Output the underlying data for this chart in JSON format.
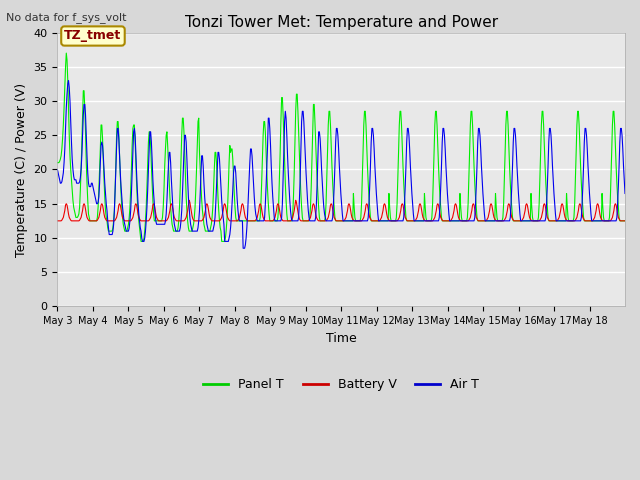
{
  "title": "Tonzi Tower Met: Temperature and Power",
  "xlabel": "Time",
  "ylabel": "Temperature (C) / Power (V)",
  "top_left_text": "No data for f_sys_volt",
  "annotation_label": "TZ_tmet",
  "ylim": [
    0,
    40
  ],
  "yticks": [
    0,
    5,
    10,
    15,
    20,
    25,
    30,
    35,
    40
  ],
  "x_labels": [
    "May 3",
    "May 4",
    "May 5",
    "May 6",
    "May 7",
    "May 8",
    "May 9",
    "May 10",
    "May 11",
    "May 12",
    "May 13",
    "May 14",
    "May 15",
    "May 16",
    "May 17",
    "May 18"
  ],
  "fig_bg_color": "#d8d8d8",
  "plot_bg_color": "#e8e8e8",
  "panel_t_color": "#00ee00",
  "battery_v_color": "#ee0000",
  "air_t_color": "#0000ee",
  "legend_colors": [
    "#00cc00",
    "#cc0000",
    "#0000cc"
  ],
  "legend_labels": [
    "Panel T",
    "Battery V",
    "Air T"
  ],
  "n_days": 16,
  "hours_per_day": 48,
  "panel_t_data": [
    21.0,
    21.0,
    21.0,
    21.2,
    21.5,
    22.0,
    23.0,
    24.5,
    26.5,
    29.0,
    32.0,
    35.0,
    37.0,
    36.0,
    33.0,
    29.0,
    25.0,
    22.0,
    20.0,
    18.5,
    17.0,
    15.5,
    14.5,
    14.0,
    13.5,
    13.0,
    13.0,
    13.0,
    13.2,
    13.5,
    14.5,
    17.0,
    20.0,
    24.0,
    28.0,
    31.5,
    31.5,
    29.0,
    25.5,
    21.0,
    18.0,
    15.5,
    13.5,
    13.0,
    12.5,
    12.5,
    12.5,
    12.5,
    12.5,
    12.5,
    12.5,
    12.5,
    12.5,
    12.5,
    13.0,
    14.5,
    17.0,
    20.0,
    23.0,
    26.5,
    26.5,
    24.5,
    21.5,
    18.5,
    16.0,
    14.0,
    13.0,
    12.5,
    11.5,
    11.0,
    11.0,
    11.0,
    11.0,
    11.0,
    11.0,
    11.5,
    12.5,
    14.0,
    17.0,
    21.0,
    25.0,
    27.0,
    27.0,
    25.0,
    22.0,
    19.0,
    16.5,
    14.5,
    13.0,
    12.0,
    11.5,
    11.0,
    11.0,
    11.0,
    11.0,
    11.5,
    12.0,
    13.0,
    14.5,
    17.0,
    20.0,
    23.5,
    26.0,
    26.5,
    26.5,
    24.0,
    21.0,
    18.0,
    15.5,
    14.0,
    12.5,
    11.5,
    10.5,
    9.5,
    9.5,
    9.5,
    9.5,
    10.0,
    11.0,
    12.5,
    14.5,
    17.5,
    21.0,
    24.0,
    25.5,
    25.5,
    23.5,
    20.5,
    18.0,
    15.5,
    13.5,
    12.5,
    12.5,
    12.5,
    12.5,
    12.5,
    12.5,
    12.5,
    12.5,
    12.5,
    12.5,
    12.5,
    13.0,
    14.5,
    17.0,
    20.5,
    23.0,
    25.0,
    25.5,
    23.5,
    21.0,
    18.5,
    16.0,
    14.5,
    13.0,
    12.0,
    11.5,
    11.0,
    11.0,
    11.0,
    11.0,
    11.0,
    11.0,
    11.5,
    12.5,
    14.5,
    17.5,
    21.5,
    25.0,
    27.5,
    27.5,
    25.5,
    22.5,
    19.0,
    16.0,
    14.0,
    12.5,
    11.5,
    11.0,
    11.0,
    11.0,
    11.0,
    11.0,
    11.5,
    12.0,
    13.0,
    14.5,
    17.0,
    20.0,
    23.5,
    27.0,
    27.5,
    22.5,
    20.0,
    17.5,
    15.5,
    14.0,
    13.0,
    12.0,
    11.5,
    11.0,
    11.0,
    11.0,
    11.0,
    11.0,
    11.0,
    11.0,
    11.5,
    12.0,
    13.0,
    14.5,
    17.0,
    20.0,
    22.5,
    22.5,
    21.0,
    18.5,
    16.0,
    14.0,
    12.5,
    11.5,
    11.0,
    9.5,
    9.5,
    9.5,
    9.5,
    9.5,
    10.0,
    11.0,
    12.5,
    14.5,
    17.5,
    21.0,
    23.5,
    22.5,
    23.0,
    23.0,
    21.5,
    19.0,
    16.5,
    14.5,
    13.0,
    12.5,
    12.5,
    12.5,
    12.5,
    12.5,
    12.5,
    12.5,
    12.5,
    12.5,
    12.5,
    12.5,
    12.5,
    12.5,
    12.5,
    12.5,
    12.5,
    12.5,
    12.5,
    12.5,
    12.5,
    12.5,
    12.5,
    12.5,
    12.5,
    12.5,
    12.5,
    12.5,
    12.5,
    12.5,
    12.5,
    12.5,
    12.5,
    13.0,
    15.0,
    18.0,
    21.5,
    25.0,
    27.0,
    27.0,
    25.5,
    22.5,
    19.5,
    17.0,
    15.0,
    13.5,
    12.5,
    12.5,
    12.5,
    12.5,
    12.5,
    12.5,
    12.5,
    12.5,
    12.5,
    12.5,
    12.5,
    13.0,
    15.0,
    18.5,
    22.5,
    27.0,
    30.5,
    30.5,
    28.0,
    24.5,
    21.0,
    18.0,
    15.5,
    13.5,
    12.5,
    12.5,
    12.5,
    12.5,
    12.5,
    12.5,
    12.5,
    13.5,
    16.0,
    19.5,
    24.0,
    28.5,
    31.0,
    31.0,
    28.5,
    25.5,
    22.0,
    19.0,
    16.5,
    14.5,
    13.0,
    12.5,
    12.5,
    12.5,
    12.5,
    12.5,
    12.5,
    12.5,
    12.5,
    12.5,
    13.0,
    14.5,
    17.5,
    21.5,
    26.0,
    29.5,
    29.5,
    27.0,
    24.0,
    21.0,
    18.5,
    16.5,
    14.5,
    13.0,
    12.5,
    12.5,
    12.5,
    12.5,
    12.5,
    12.5,
    12.5,
    13.0,
    15.0,
    18.5,
    22.5,
    26.5,
    28.5,
    28.5,
    26.5,
    23.5,
    20.5,
    18.0,
    16.0,
    14.5,
    13.0,
    12.5,
    12.5,
    12.5,
    12.5,
    12.5,
    12.5,
    12.5,
    12.5,
    12.5,
    12.5,
    12.5,
    12.5,
    12.5,
    12.5,
    12.5,
    12.5,
    12.5,
    12.5,
    12.5,
    12.5,
    12.5,
    12.5,
    12.5,
    12.5
  ],
  "battery_v_data": [
    12.5,
    12.5,
    12.5,
    12.5,
    12.5,
    12.5,
    12.6,
    12.8,
    13.0,
    13.5,
    14.0,
    14.8,
    15.0,
    14.8,
    14.2,
    13.5,
    13.0,
    12.8,
    12.6,
    12.5,
    12.5,
    12.5,
    12.5,
    12.5,
    12.5,
    12.5,
    12.5,
    12.5,
    12.5,
    12.5,
    12.6,
    12.8,
    13.0,
    13.5,
    14.0,
    14.8,
    15.0,
    14.8,
    14.2,
    13.5,
    13.0,
    12.8,
    12.6,
    12.5,
    12.5,
    12.5,
    12.5,
    12.5,
    12.5,
    12.5,
    12.5,
    12.5,
    12.5,
    12.5,
    12.6,
    12.8,
    13.0,
    13.5,
    14.0,
    14.8,
    15.0,
    14.8,
    14.2,
    13.5,
    13.0,
    12.8,
    12.6,
    12.5,
    12.5,
    12.5,
    12.5,
    12.5,
    12.5,
    12.5,
    12.5,
    12.5,
    12.5,
    12.5,
    12.6,
    12.8,
    13.0,
    13.5,
    14.0,
    14.8,
    15.0,
    14.8,
    14.2,
    13.5,
    13.0,
    12.8,
    12.6,
    12.5,
    12.5,
    12.5,
    12.5,
    12.5,
    12.5,
    12.5,
    12.5,
    12.5,
    12.6,
    12.8,
    13.0,
    13.5,
    14.0,
    14.8,
    15.0,
    14.8,
    14.2,
    13.5,
    13.0,
    12.8,
    12.6,
    12.5,
    12.5,
    12.5,
    12.5,
    12.5,
    12.5,
    12.5,
    12.5,
    12.5,
    12.5,
    12.5,
    12.6,
    12.8,
    13.0,
    13.5,
    14.0,
    14.8,
    15.0,
    14.8,
    14.2,
    13.5,
    13.0,
    12.8,
    12.6,
    12.5,
    12.5,
    12.5,
    12.5,
    12.5,
    12.5,
    12.5,
    12.5,
    12.5,
    12.5,
    12.5,
    12.6,
    12.8,
    13.0,
    13.5,
    14.0,
    14.8,
    15.0,
    14.8,
    14.2,
    13.5,
    13.0,
    12.8,
    12.6,
    12.5,
    12.5,
    12.5,
    12.5,
    12.5,
    12.5,
    12.5,
    12.5,
    12.5,
    12.5,
    12.5,
    12.6,
    12.8,
    13.0,
    13.5,
    14.0,
    14.8,
    15.5,
    15.2,
    14.5,
    13.8,
    13.2,
    12.8,
    12.6,
    12.5,
    12.5,
    12.5,
    12.5,
    12.5,
    12.5,
    12.5,
    12.5,
    12.5,
    12.5,
    12.5,
    12.6,
    12.8,
    13.0,
    13.5,
    14.0,
    14.8,
    15.0,
    14.8,
    14.2,
    13.5,
    13.0,
    12.8,
    12.6,
    12.5,
    12.5,
    12.5,
    12.5,
    12.5,
    12.5,
    12.5,
    12.5,
    12.5,
    12.5,
    12.5,
    12.6,
    12.8,
    13.0,
    13.5,
    14.0,
    14.8,
    15.0,
    14.8,
    14.2,
    13.5,
    13.0,
    12.8,
    12.6,
    12.5,
    12.5,
    12.5,
    12.5,
    12.5,
    12.5,
    12.5,
    12.5,
    12.5,
    12.5,
    12.5,
    12.6,
    12.8,
    13.0,
    13.5,
    14.0,
    14.8,
    15.0,
    14.8,
    14.2,
    13.5,
    13.0,
    12.8,
    12.6,
    12.5,
    12.5,
    12.5,
    12.5,
    12.5,
    12.5,
    12.5,
    12.5,
    12.5,
    12.5,
    12.5,
    12.6,
    12.8,
    13.0,
    13.5,
    14.0,
    14.8,
    15.0,
    14.8,
    14.2,
    13.5,
    13.0,
    12.8,
    12.6,
    12.5,
    12.5,
    12.5,
    12.5,
    12.5,
    12.5,
    12.5,
    12.5,
    12.5,
    12.5,
    12.5,
    12.6,
    12.8,
    13.0,
    13.5,
    14.0,
    14.8,
    15.0,
    14.8,
    14.2,
    13.5,
    13.0,
    12.8,
    12.6,
    12.5,
    12.5,
    12.5,
    12.5,
    12.5,
    12.5,
    12.5,
    12.5,
    12.5,
    12.5,
    12.5,
    12.6,
    12.8,
    13.0,
    13.5,
    14.0,
    14.8,
    15.5,
    15.2,
    14.5,
    13.8,
    13.2,
    12.8,
    12.6,
    12.5,
    12.5,
    12.5,
    12.5,
    12.5,
    12.5,
    12.5,
    12.5,
    12.5,
    12.5,
    12.5,
    12.6,
    12.8,
    13.0,
    13.5,
    14.0,
    14.8,
    15.0,
    14.8,
    14.2,
    13.5,
    13.0,
    12.8,
    12.6,
    12.5,
    12.5,
    12.5,
    12.5,
    12.5,
    12.5,
    12.5,
    12.5,
    12.5,
    12.5,
    12.5,
    12.6,
    12.8,
    13.0,
    13.5,
    14.0,
    14.8,
    15.0,
    14.8,
    14.2,
    13.5,
    13.0,
    12.8,
    12.6,
    12.5,
    12.5,
    12.5,
    12.5,
    12.5,
    12.5,
    12.5,
    12.5,
    12.5,
    12.5,
    12.5,
    12.6,
    12.8,
    13.0,
    13.5,
    14.0,
    14.8,
    15.0,
    14.8,
    14.2,
    13.5,
    13.0,
    12.8,
    12.6,
    12.5,
    12.5,
    12.5,
    12.5,
    12.5,
    12.5,
    12.5,
    12.5,
    12.5,
    12.5,
    12.5,
    12.6,
    12.8,
    13.0,
    13.5,
    14.0,
    14.8,
    15.0,
    14.8,
    14.2,
    13.5,
    13.0,
    12.8,
    12.6,
    12.5,
    12.5,
    12.5,
    12.5,
    12.5
  ],
  "air_t_data": [
    20.0,
    19.5,
    19.0,
    18.5,
    18.0,
    18.0,
    18.2,
    18.8,
    19.5,
    21.0,
    23.0,
    26.0,
    29.0,
    31.0,
    32.5,
    33.0,
    32.0,
    30.0,
    27.0,
    24.0,
    21.5,
    20.0,
    19.0,
    18.5,
    18.5,
    18.5,
    18.0,
    18.0,
    18.0,
    18.0,
    18.2,
    18.8,
    20.0,
    22.0,
    25.0,
    28.0,
    29.5,
    29.5,
    28.0,
    25.0,
    22.0,
    19.5,
    18.0,
    17.5,
    17.5,
    17.5,
    18.0,
    18.0,
    17.5,
    17.0,
    16.5,
    16.0,
    15.5,
    15.0,
    15.0,
    15.2,
    16.0,
    18.0,
    21.0,
    23.5,
    24.0,
    23.5,
    22.0,
    20.0,
    18.0,
    16.5,
    15.0,
    14.0,
    12.5,
    11.5,
    10.5,
    10.5,
    10.5,
    10.5,
    10.5,
    11.0,
    12.0,
    14.0,
    17.0,
    20.0,
    23.5,
    26.0,
    26.0,
    24.5,
    22.0,
    19.5,
    17.5,
    16.0,
    14.5,
    13.5,
    12.5,
    12.0,
    11.5,
    11.0,
    11.0,
    11.0,
    11.0,
    11.5,
    12.5,
    14.0,
    16.5,
    19.5,
    22.5,
    25.5,
    26.0,
    25.0,
    22.5,
    19.5,
    17.0,
    15.0,
    13.5,
    12.5,
    11.5,
    11.0,
    10.0,
    9.5,
    9.5,
    9.5,
    10.0,
    11.0,
    12.5,
    14.5,
    17.0,
    20.0,
    23.0,
    25.5,
    25.5,
    24.0,
    21.5,
    18.5,
    16.5,
    15.0,
    13.5,
    12.5,
    12.0,
    12.0,
    12.0,
    12.0,
    12.0,
    12.0,
    12.0,
    12.0,
    12.0,
    12.0,
    12.0,
    12.0,
    12.5,
    13.5,
    15.5,
    18.0,
    20.5,
    22.5,
    22.5,
    21.0,
    18.5,
    16.5,
    14.5,
    13.0,
    12.0,
    11.5,
    11.0,
    11.0,
    11.0,
    11.0,
    11.0,
    11.0,
    11.5,
    12.5,
    14.0,
    16.5,
    19.5,
    22.5,
    25.0,
    25.0,
    24.0,
    21.5,
    18.5,
    16.0,
    14.5,
    13.0,
    12.0,
    11.5,
    11.0,
    11.0,
    11.0,
    11.0,
    11.0,
    11.0,
    11.0,
    11.0,
    11.5,
    12.5,
    14.0,
    16.5,
    19.5,
    22.0,
    22.0,
    20.5,
    18.0,
    16.0,
    14.5,
    13.0,
    12.0,
    11.5,
    11.0,
    11.0,
    11.0,
    11.0,
    11.0,
    11.0,
    11.0,
    11.5,
    12.0,
    13.0,
    15.0,
    17.5,
    20.0,
    22.5,
    22.5,
    21.5,
    19.5,
    17.5,
    15.5,
    14.0,
    13.0,
    12.0,
    9.5,
    9.5,
    9.5,
    9.5,
    9.5,
    9.5,
    10.0,
    10.5,
    11.5,
    13.0,
    15.0,
    17.0,
    19.5,
    20.5,
    20.5,
    19.5,
    17.5,
    15.5,
    14.0,
    13.0,
    12.5,
    12.5,
    12.5,
    12.5,
    12.5,
    8.5,
    8.5,
    8.5,
    9.0,
    10.0,
    11.5,
    13.5,
    16.0,
    18.5,
    21.0,
    23.0,
    23.0,
    22.0,
    20.0,
    18.0,
    16.0,
    14.5,
    13.5,
    13.0,
    12.5,
    12.5,
    12.5,
    12.5,
    12.5,
    12.5,
    12.5,
    12.5,
    12.5,
    12.5,
    13.0,
    15.0,
    17.5,
    20.5,
    23.5,
    27.5,
    27.5,
    26.0,
    23.5,
    20.5,
    18.0,
    16.0,
    14.5,
    13.0,
    12.5,
    12.5,
    12.5,
    12.5,
    12.5,
    12.5,
    12.5,
    12.5,
    12.5,
    13.0,
    15.0,
    18.5,
    22.5,
    27.0,
    28.5,
    27.5,
    25.0,
    22.0,
    19.5,
    17.5,
    15.5,
    14.0,
    13.0,
    12.5,
    12.5,
    12.5,
    12.5,
    12.5,
    12.5,
    12.5,
    12.5,
    12.5,
    13.0,
    15.5,
    18.5,
    22.5,
    27.0,
    28.5,
    28.5,
    27.0,
    24.5,
    22.0,
    19.5,
    17.5,
    15.5,
    14.0,
    13.0,
    12.5,
    12.5,
    12.5,
    12.5,
    12.5,
    12.5,
    12.5,
    12.5,
    13.0,
    15.0,
    18.0,
    22.0,
    25.5,
    25.5,
    24.5,
    22.5,
    20.0,
    18.0,
    16.0,
    14.5,
    13.5,
    13.0,
    12.5,
    12.5,
    12.5,
    12.5,
    12.5,
    12.5,
    12.5,
    12.5,
    12.5,
    13.0,
    15.0,
    17.5,
    20.5,
    24.0,
    26.0,
    26.0,
    25.0,
    23.0,
    20.5,
    18.5,
    16.5,
    15.0,
    13.5,
    12.5,
    12.5,
    12.5,
    12.5,
    12.5,
    12.5,
    12.5,
    12.5,
    12.5,
    12.5,
    12.5,
    12.5,
    12.5,
    12.5,
    12.5,
    12.5,
    12.5,
    12.5,
    12.5,
    12.5,
    12.5,
    12.5,
    12.5,
    12.5,
    12.5,
    12.5,
    12.5,
    12.5
  ]
}
